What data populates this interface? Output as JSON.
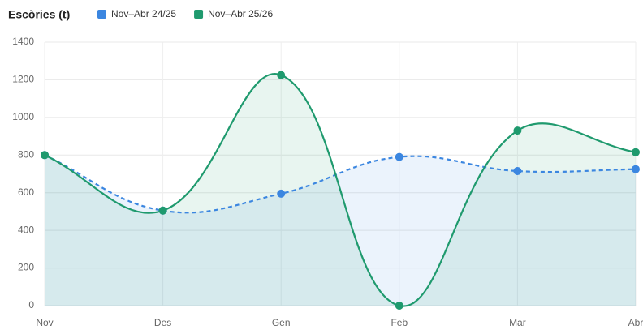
{
  "chart_data": {
    "type": "line",
    "title": "Escòries (t)",
    "categories": [
      "Nov",
      "Des",
      "Gen",
      "Feb",
      "Mar",
      "Abr"
    ],
    "series": [
      {
        "name": "Nov–Abr 24/25",
        "color": "#3b86e0",
        "dashed": true,
        "values": [
          800,
          505,
          595,
          790,
          715,
          725
        ]
      },
      {
        "name": "Nov–Abr 25/26",
        "color": "#1f9a6e",
        "dashed": false,
        "values": [
          800,
          505,
          1225,
          0,
          930,
          815
        ]
      }
    ],
    "ylim": [
      0,
      1400
    ],
    "yticks": [
      0,
      200,
      400,
      600,
      800,
      1000,
      1200,
      1400
    ],
    "grid": true,
    "smooth": true
  }
}
